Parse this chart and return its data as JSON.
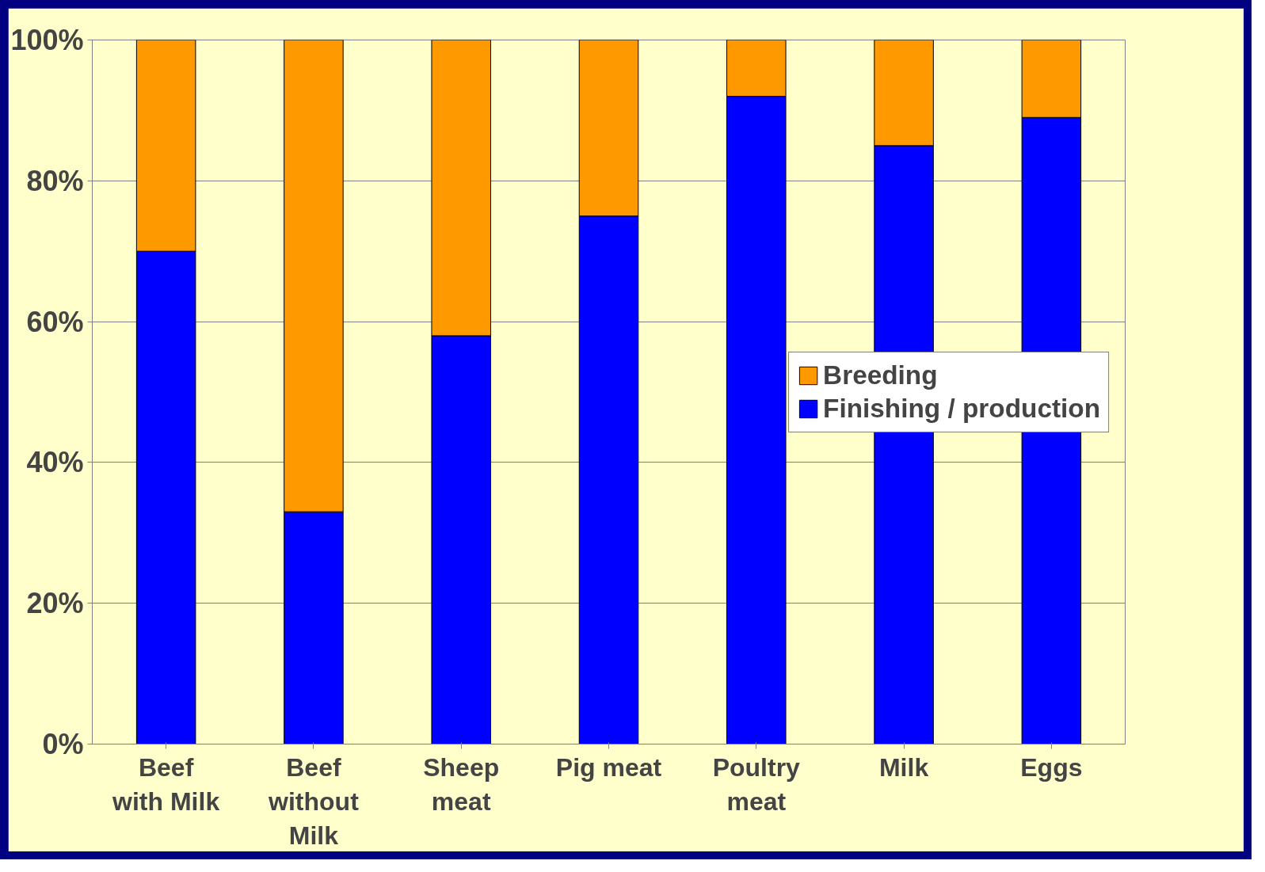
{
  "chart_data": {
    "type": "bar",
    "stacked": true,
    "categories": [
      "Beef\nwith Milk",
      "Beef\nwithout\nMilk",
      "Sheep\nmeat",
      "Pig meat",
      "Poultry\nmeat",
      "Milk",
      "Eggs"
    ],
    "series": [
      {
        "name": "Finishing / production",
        "color": "#0000ff",
        "values": [
          70,
          33,
          58,
          75,
          92,
          85,
          89
        ]
      },
      {
        "name": "Breeding",
        "color": "#ff9900",
        "values": [
          30,
          67,
          42,
          25,
          8,
          15,
          11
        ]
      }
    ],
    "ylim": [
      0,
      100
    ],
    "yticks": [
      {
        "value": 0,
        "label": "0%"
      },
      {
        "value": 20,
        "label": "20%"
      },
      {
        "value": 40,
        "label": "40%"
      },
      {
        "value": 60,
        "label": "60%"
      },
      {
        "value": 80,
        "label": "80%"
      },
      {
        "value": 100,
        "label": "100%"
      }
    ],
    "grid": "y",
    "legend": "right"
  }
}
